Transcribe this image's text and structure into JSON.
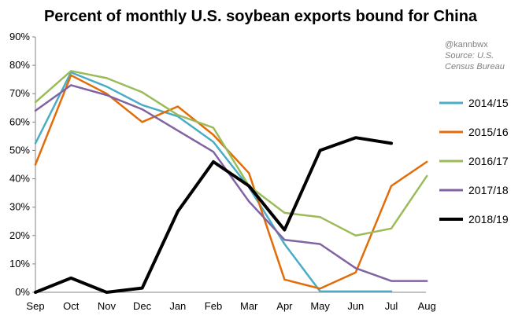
{
  "chart_data": {
    "type": "line",
    "title": "Percent of monthly U.S. soybean exports bound for China",
    "xlabel": "",
    "ylabel": "",
    "categories": [
      "Sep",
      "Oct",
      "Nov",
      "Dec",
      "Jan",
      "Feb",
      "Mar",
      "Apr",
      "May",
      "Jun",
      "Jul",
      "Aug"
    ],
    "ylim": [
      0,
      90
    ],
    "yticks": [
      0,
      10,
      20,
      30,
      40,
      50,
      60,
      70,
      80,
      90
    ],
    "ytick_labels": [
      "0%",
      "10%",
      "20%",
      "30%",
      "40%",
      "50%",
      "60%",
      "70%",
      "80%",
      "90%"
    ],
    "grid": false,
    "legend_position": "right",
    "annotations": [
      "@kannbwx",
      "Source: U.S.",
      "Census Bureau"
    ],
    "series": [
      {
        "name": "2014/15",
        "color": "#4bacc6",
        "values": [
          52.5,
          77.5,
          72.5,
          66,
          62,
          53,
          37,
          17,
          0.3,
          0.3,
          0.3,
          null
        ]
      },
      {
        "name": "2015/16",
        "color": "#e36c09",
        "values": [
          45,
          76.5,
          70,
          60,
          65.5,
          55.5,
          42,
          4.5,
          1.3,
          7,
          37.5,
          46
        ]
      },
      {
        "name": "2016/17",
        "color": "#9bbb59",
        "values": [
          67,
          78,
          75.5,
          70.5,
          62.5,
          58,
          37.5,
          28,
          26.5,
          20,
          22.5,
          41
        ]
      },
      {
        "name": "2017/18",
        "color": "#8064a2",
        "values": [
          64,
          73,
          69.5,
          64.5,
          57,
          49.5,
          32,
          18.5,
          17,
          8.5,
          4,
          4
        ]
      },
      {
        "name": "2018/19",
        "color": "#000000",
        "values": [
          0,
          5,
          0,
          1.5,
          28.5,
          46,
          37.5,
          22,
          50,
          54.5,
          52.5,
          null
        ]
      }
    ]
  }
}
